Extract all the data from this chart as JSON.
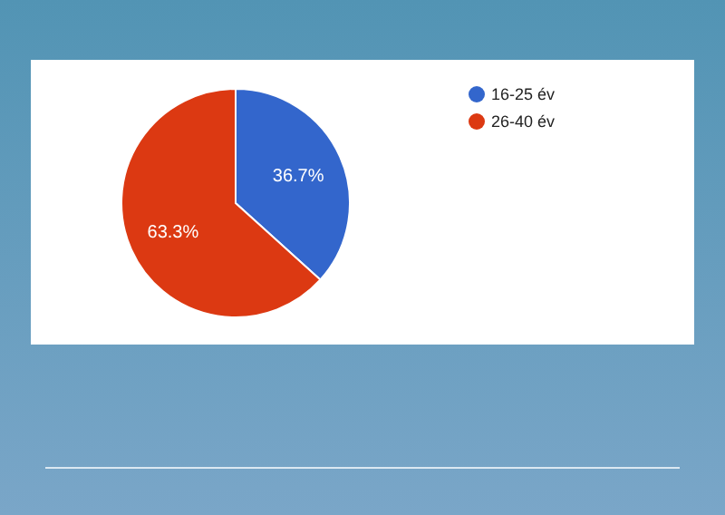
{
  "chart_data": {
    "type": "pie",
    "categories": [
      "16-25 év",
      "26-40 év"
    ],
    "values": [
      36.7,
      63.3
    ],
    "colors": [
      "#3366cc",
      "#dc3912"
    ],
    "value_labels": [
      "36.7%",
      "63.3%"
    ],
    "legend": "top right"
  }
}
